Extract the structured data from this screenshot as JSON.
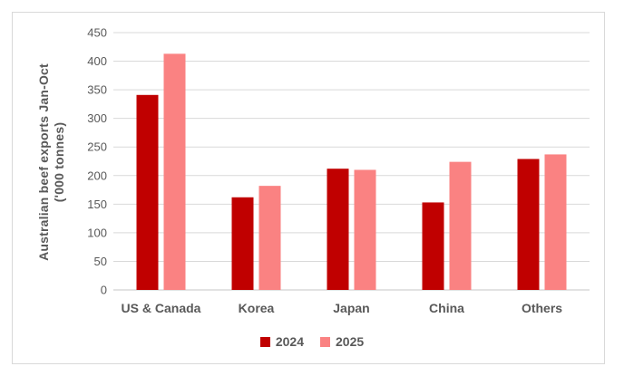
{
  "chart_data": {
    "type": "bar",
    "title": "",
    "categories": [
      "US & Canada",
      "Korea",
      "Japan",
      "China",
      "Others"
    ],
    "series": [
      {
        "name": "2024",
        "color": "#C00000",
        "values": [
          341,
          162,
          212,
          153,
          229
        ]
      },
      {
        "name": "2025",
        "color": "#FA8282",
        "values": [
          413,
          182,
          210,
          224,
          237
        ]
      }
    ],
    "ylabel_line1": "Australian beef exports Jan-Oct",
    "ylabel_line2": "('000 tonnes)",
    "xlabel": "",
    "ylim": [
      0,
      450
    ],
    "ytick_step": 50,
    "ytick_labels": [
      "0",
      "50",
      "100",
      "150",
      "200",
      "250",
      "300",
      "350",
      "400",
      "450"
    ],
    "grid": "horizontal",
    "legend_position": "bottom-center",
    "colors": {
      "grid": "#D9D9D9",
      "axis_line": "#C6C6C6",
      "text": "#595959",
      "frame_border": "#D9D9D9",
      "background": "#FFFFFF"
    }
  }
}
